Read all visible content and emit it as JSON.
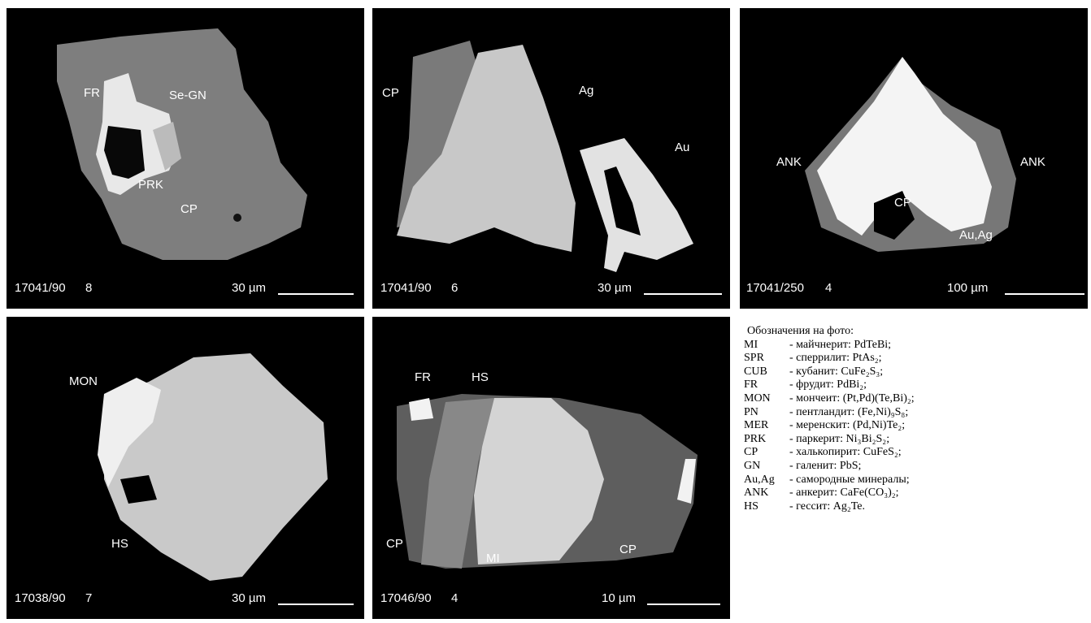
{
  "panels": [
    {
      "sample": "17041/90",
      "frame": "8",
      "scale": "30 µm",
      "labels": [
        "FR",
        "Se-GN",
        "PRK",
        "CP"
      ]
    },
    {
      "sample": "17041/90",
      "frame": "6",
      "scale": "30 µm",
      "labels": [
        "CP",
        "Ag",
        "Au"
      ]
    },
    {
      "sample": "17041/250",
      "frame": "4",
      "scale": "100 µm",
      "labels": [
        "ANK",
        "ANK",
        "CP",
        "Au,Ag"
      ]
    },
    {
      "sample": "17038/90",
      "frame": "7",
      "scale": "30 µm",
      "labels": [
        "MON",
        "HS"
      ]
    },
    {
      "sample": "17046/90",
      "frame": "4",
      "scale": "10 µm",
      "labels": [
        "FR",
        "HS",
        "CP",
        "MI",
        "CP"
      ]
    }
  ],
  "legend": {
    "title": "Обозначения на фото:",
    "items": [
      {
        "abbr": "MI",
        "text": "- майчнерит: PdTeBi;"
      },
      {
        "abbr": "SPR",
        "text": "- сперрилит: PtAs₂;"
      },
      {
        "abbr": "CUB",
        "text": "- кубанит: CuFe₂S₃;"
      },
      {
        "abbr": "FR",
        "text": "- фрудит: PdBi₂;"
      },
      {
        "abbr": "MON",
        "text": "- мончеит: (Pt,Pd)(Te,Bi)₂;"
      },
      {
        "abbr": "PN",
        "text": "- пентландит: (Fe,Ni)₉S₈;"
      },
      {
        "abbr": "MER",
        "text": "- меренскит: (Pd,Ni)Te₂;"
      },
      {
        "abbr": "PRK",
        "text": "- паркерит: Ni₃Bi₂S₂;"
      },
      {
        "abbr": "CP",
        "text": "- халькопирит: CuFeS₂;"
      },
      {
        "abbr": "GN",
        "text": "- галенит: PbS;"
      },
      {
        "abbr": "Au,Ag",
        "text": "- самородные минералы;"
      },
      {
        "abbr": "ANK",
        "text": "- анкерит: CaFe(CO₃)₂;"
      },
      {
        "abbr": "HS",
        "text": "- гессит: Ag₂Te."
      }
    ]
  }
}
